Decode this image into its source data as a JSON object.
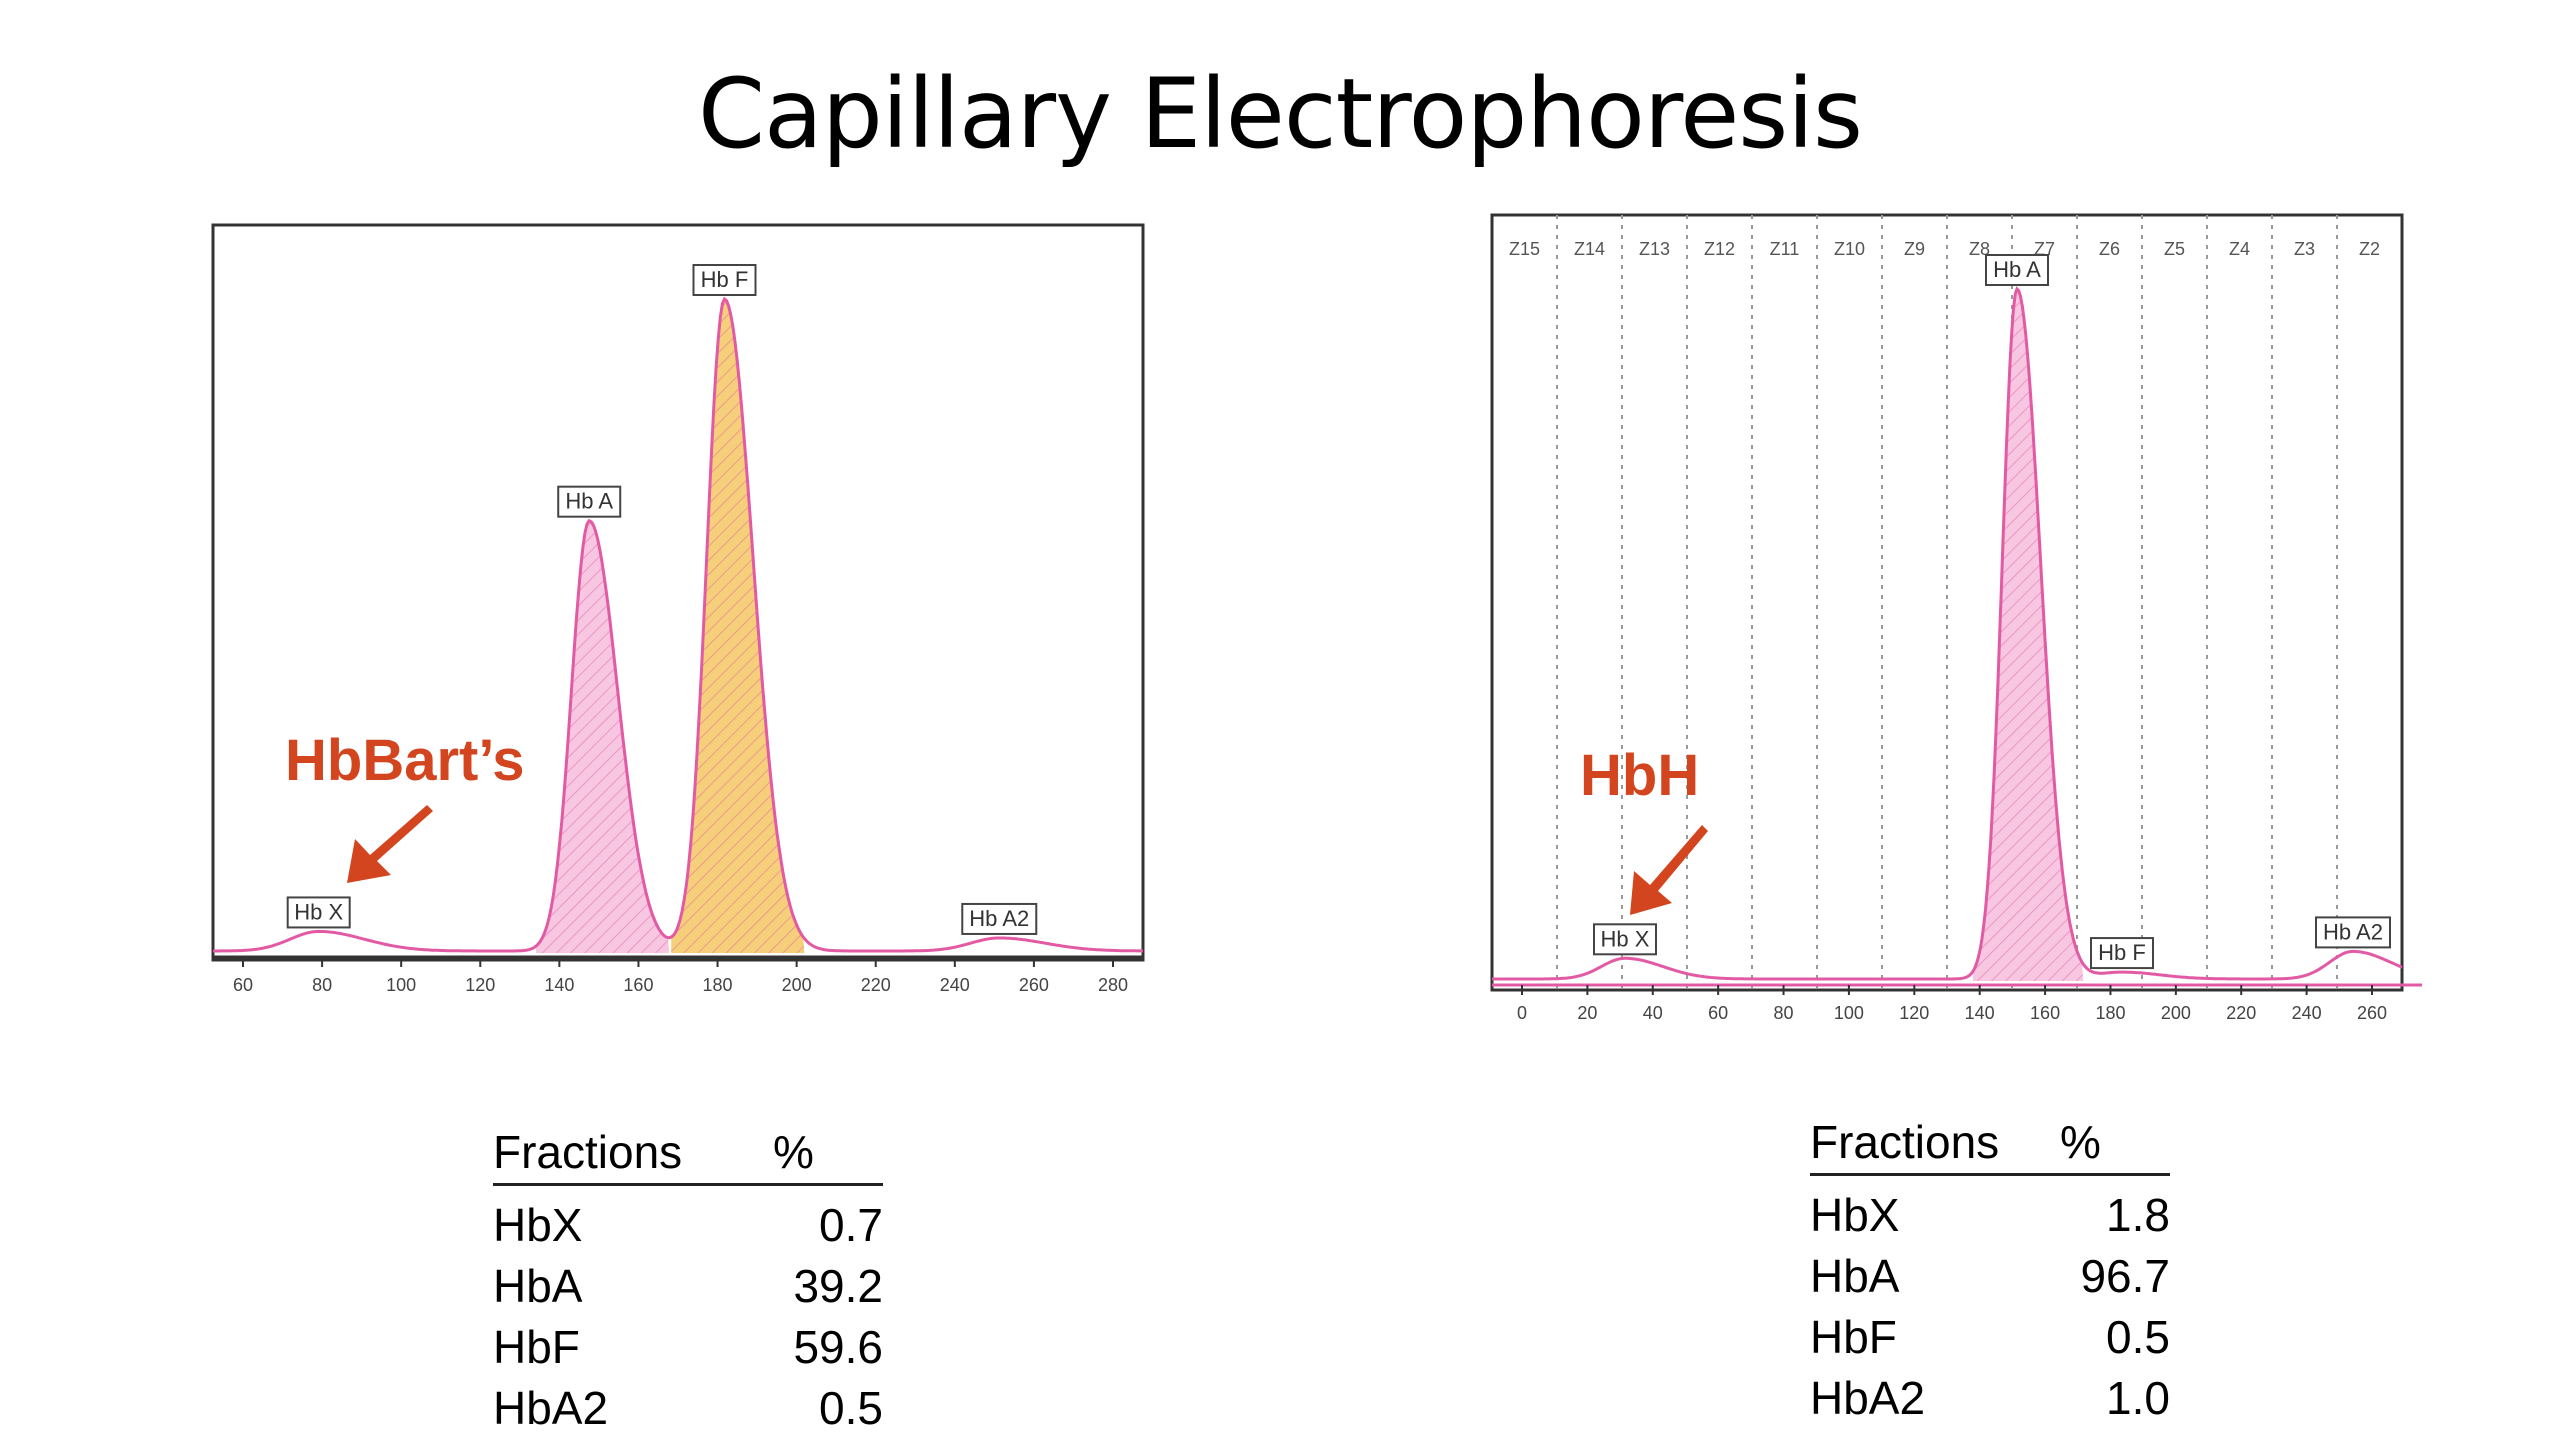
{
  "page": {
    "title": "Capillary Electrophoresis"
  },
  "chart_data": [
    {
      "type": "line",
      "name": "left-electropherogram",
      "x_ticks": [
        "60",
        "80",
        "100",
        "120",
        "140",
        "160",
        "180",
        "200",
        "220",
        "240",
        "260",
        "280"
      ],
      "xlim": [
        60,
        280
      ],
      "grid": false,
      "peaks": [
        {
          "label": "Hb X",
          "x": 85,
          "rel_height": 0.03,
          "color": "#e25aa4"
        },
        {
          "label": "Hb A",
          "x": 149,
          "rel_height": 0.66,
          "color": "#e25aa4",
          "fill": "#f7c6e0"
        },
        {
          "label": "Hb F",
          "x": 181,
          "rel_height": 1.0,
          "color": "#e25aa4",
          "fill": "#f5cf7a"
        },
        {
          "label": "Hb A2",
          "x": 246,
          "rel_height": 0.02,
          "color": "#e25aa4"
        }
      ],
      "annotation": {
        "text": "HbBart’s",
        "color": "#d2451e"
      }
    },
    {
      "type": "line",
      "name": "right-electropherogram",
      "x_ticks": [
        "0",
        "20",
        "40",
        "60",
        "80",
        "100",
        "120",
        "140",
        "160",
        "180",
        "200",
        "220",
        "240",
        "260"
      ],
      "xlim": [
        0,
        260
      ],
      "grid": true,
      "zones": [
        "Z15",
        "Z14",
        "Z13",
        "Z12",
        "Z11",
        "Z10",
        "Z9",
        "Z8",
        "Z7",
        "Z6",
        "Z5",
        "Z4",
        "Z3",
        "Z2"
      ],
      "peaks": [
        {
          "label": "Hb X",
          "x": 38,
          "rel_height": 0.03,
          "color": "#e25aa4"
        },
        {
          "label": "Hb A",
          "x": 150,
          "rel_height": 1.0,
          "color": "#e25aa4",
          "fill": "#f7c6e0"
        },
        {
          "label": "Hb F",
          "x": 180,
          "rel_height": 0.01,
          "color": "#e25aa4"
        },
        {
          "label": "Hb A2",
          "x": 246,
          "rel_height": 0.04,
          "color": "#e25aa4"
        }
      ],
      "annotation": {
        "text": "HbH",
        "color": "#d2451e"
      }
    },
    {
      "type": "table",
      "name": "left-fractions",
      "columns": [
        "Fractions",
        "%"
      ],
      "rows": [
        [
          "HbX",
          "0.7"
        ],
        [
          "HbA",
          "39.2"
        ],
        [
          "HbF",
          "59.6"
        ],
        [
          "HbA2",
          "0.5"
        ]
      ]
    },
    {
      "type": "table",
      "name": "right-fractions",
      "columns": [
        "Fractions",
        "%"
      ],
      "rows": [
        [
          "HbX",
          "1.8"
        ],
        [
          "HbA",
          "96.7"
        ],
        [
          "HbF",
          "0.5"
        ],
        [
          "HbA2",
          "1.0"
        ]
      ]
    }
  ],
  "colors": {
    "trace": "#e25aa4",
    "arrow": "#d2451e",
    "hbf_fill": "#f5cf7a",
    "hba_fill": "#f7c6e0"
  }
}
